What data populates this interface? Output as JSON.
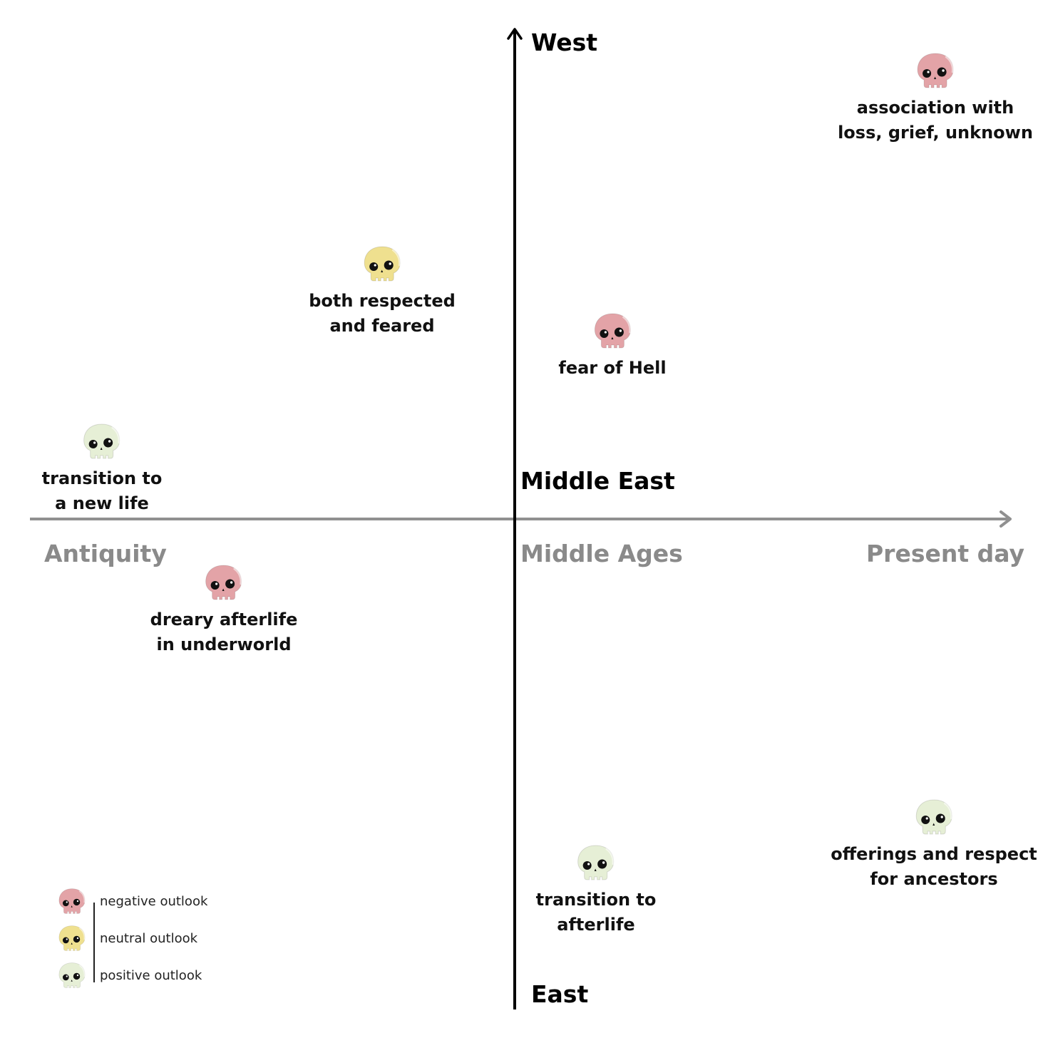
{
  "axes": {
    "vertical_top": "West",
    "vertical_bottom": "East",
    "center_label": "Middle East",
    "horizontal_left": "Antiquity",
    "horizontal_center": "Middle Ages",
    "horizontal_right": "Present day"
  },
  "colors": {
    "negative": "#e3a3a7",
    "neutral": "#efe08f",
    "positive": "#e6efd6",
    "axis_vertical": "#000000",
    "axis_horizontal": "#909090"
  },
  "points": [
    {
      "caption": [
        "association with",
        "loss, grief, unknown"
      ],
      "outlook": "negative",
      "icon": "skull-icon"
    },
    {
      "caption": [
        "both respected",
        "and feared"
      ],
      "outlook": "neutral",
      "icon": "skull-icon"
    },
    {
      "caption": [
        "fear of Hell"
      ],
      "outlook": "negative",
      "icon": "skull-icon"
    },
    {
      "caption": [
        "transition to",
        "a new life"
      ],
      "outlook": "positive",
      "icon": "skull-icon"
    },
    {
      "caption": [
        "dreary afterlife",
        "in underworld"
      ],
      "outlook": "negative",
      "icon": "skull-icon"
    },
    {
      "caption": [
        "offerings and respect",
        "for ancestors"
      ],
      "outlook": "positive",
      "icon": "skull-icon"
    },
    {
      "caption": [
        "transition to",
        "afterlife"
      ],
      "outlook": "positive",
      "icon": "skull-icon"
    }
  ],
  "legend": [
    {
      "label": "negative outlook",
      "outlook": "negative"
    },
    {
      "label": "neutral outlook",
      "outlook": "neutral"
    },
    {
      "label": "positive outlook",
      "outlook": "positive"
    }
  ]
}
